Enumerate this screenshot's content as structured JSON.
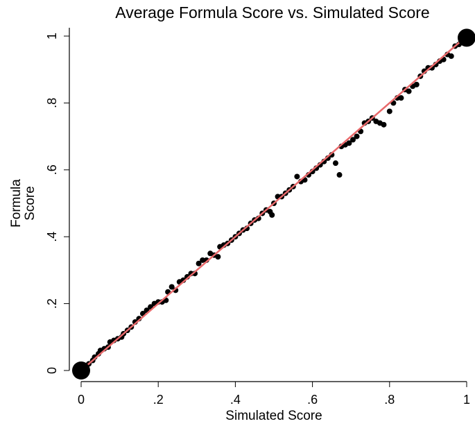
{
  "chart_data": {
    "type": "scatter",
    "title": "Average Formula Score vs. Simulated Score",
    "x_label": "Simulated Score",
    "y_label_lines": [
      "Formula",
      "Score"
    ],
    "xlim": [
      0,
      1
    ],
    "ylim": [
      0,
      1
    ],
    "xticks": [
      0,
      {
        "value": 0.2,
        "label": ".2"
      },
      {
        "value": 0.4,
        "label": ".4"
      },
      {
        "value": 0.6,
        "label": ".6"
      },
      {
        "value": 0.8,
        "label": ".8"
      },
      1
    ],
    "yticks": [
      0,
      {
        "value": 0.2,
        "label": ".2"
      },
      {
        "value": 0.4,
        "label": ".4"
      },
      {
        "value": 0.6,
        "label": ".6"
      },
      {
        "value": 0.8,
        "label": ".8"
      },
      1
    ],
    "series": [
      {
        "color": "#000000",
        "size": 4,
        "x": [
          0.01,
          0.02,
          0.03,
          0.035,
          0.045,
          0.05,
          0.06,
          0.07,
          0.075,
          0.085,
          0.095,
          0.105,
          0.11,
          0.12,
          0.13,
          0.14,
          0.15,
          0.16,
          0.17,
          0.18,
          0.19,
          0.2,
          0.21,
          0.22,
          0.225,
          0.235,
          0.245,
          0.255,
          0.265,
          0.275,
          0.285,
          0.295,
          0.305,
          0.315,
          0.325,
          0.335,
          0.345,
          0.355,
          0.36,
          0.37,
          0.38,
          0.39,
          0.4,
          0.41,
          0.42,
          0.43,
          0.44,
          0.45,
          0.46,
          0.47,
          0.48,
          0.49,
          0.495,
          0.5,
          0.51,
          0.52,
          0.53,
          0.54,
          0.55,
          0.56,
          0.57,
          0.58,
          0.59,
          0.6,
          0.61,
          0.62,
          0.63,
          0.64,
          0.65,
          0.66,
          0.67,
          0.675,
          0.685,
          0.695,
          0.705,
          0.715,
          0.725,
          0.735,
          0.745,
          0.755,
          0.765,
          0.775,
          0.785,
          0.8,
          0.81,
          0.82,
          0.83,
          0.84,
          0.85,
          0.86,
          0.87,
          0.88,
          0.89,
          0.9,
          0.91,
          0.92,
          0.93,
          0.94,
          0.95,
          0.96,
          0.97,
          0.98
        ],
        "values": [
          0.01,
          0.02,
          0.03,
          0.04,
          0.05,
          0.06,
          0.065,
          0.07,
          0.085,
          0.09,
          0.095,
          0.1,
          0.11,
          0.12,
          0.13,
          0.145,
          0.155,
          0.17,
          0.18,
          0.19,
          0.2,
          0.205,
          0.205,
          0.21,
          0.235,
          0.25,
          0.24,
          0.265,
          0.27,
          0.28,
          0.29,
          0.29,
          0.32,
          0.33,
          0.33,
          0.35,
          0.345,
          0.34,
          0.37,
          0.375,
          0.38,
          0.39,
          0.4,
          0.41,
          0.42,
          0.425,
          0.44,
          0.45,
          0.455,
          0.47,
          0.48,
          0.475,
          0.465,
          0.5,
          0.52,
          0.52,
          0.53,
          0.54,
          0.55,
          0.58,
          0.565,
          0.57,
          0.585,
          0.595,
          0.605,
          0.615,
          0.625,
          0.635,
          0.645,
          0.62,
          0.585,
          0.67,
          0.675,
          0.68,
          0.69,
          0.7,
          0.715,
          0.74,
          0.745,
          0.755,
          0.745,
          0.74,
          0.735,
          0.775,
          0.8,
          0.815,
          0.815,
          0.84,
          0.835,
          0.85,
          0.855,
          0.88,
          0.895,
          0.905,
          0.905,
          0.915,
          0.925,
          0.93,
          0.945,
          0.94,
          0.97,
          0.975
        ]
      },
      {
        "color": "#000000",
        "size": 13,
        "x": [
          0,
          1
        ],
        "values": [
          0,
          0.995
        ]
      }
    ],
    "fit_line": {
      "color": "#e8696b",
      "x": [
        0,
        1
      ],
      "values": [
        0,
        1
      ]
    }
  }
}
